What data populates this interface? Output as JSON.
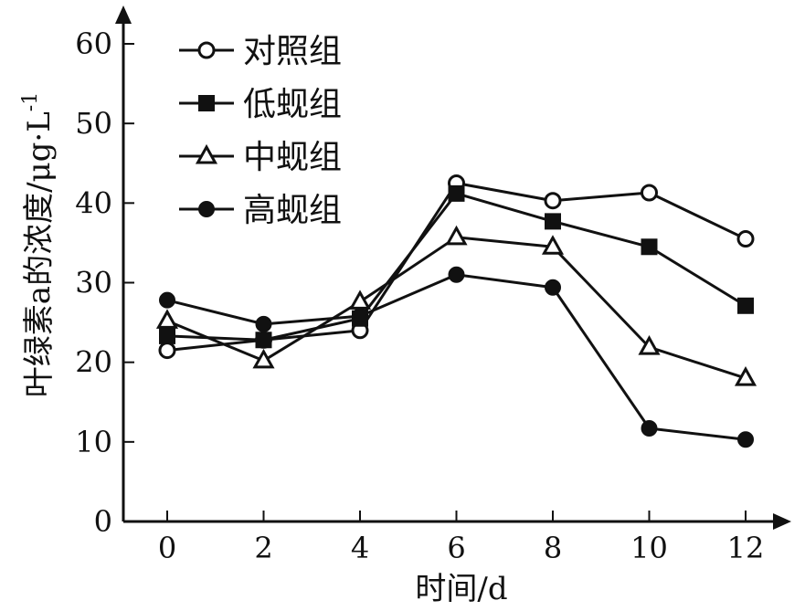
{
  "chart_data": {
    "type": "line",
    "title": "",
    "xlabel": "时间/d",
    "ylabel": "叶绿素a的浓度/μg·L",
    "ylabel_superscript": "-1",
    "x": [
      0,
      2,
      4,
      6,
      8,
      10,
      12
    ],
    "x_ticks": [
      "0",
      "2",
      "4",
      "6",
      "8",
      "10",
      "12"
    ],
    "y_ticks": [
      "0",
      "10",
      "20",
      "30",
      "40",
      "50",
      "60"
    ],
    "xlim": [
      -1,
      13
    ],
    "ylim": [
      0,
      62
    ],
    "grid": false,
    "legend_position": "top-left",
    "series": [
      {
        "name": "对照组",
        "marker": "circle-open",
        "values": [
          21.5,
          22.8,
          24.0,
          42.5,
          40.3,
          41.3,
          35.5
        ]
      },
      {
        "name": "低蚬组",
        "marker": "square-filled",
        "values": [
          23.3,
          22.8,
          25.5,
          41.2,
          37.7,
          34.5,
          27.1
        ]
      },
      {
        "name": "中蚬组",
        "marker": "triangle-open",
        "values": [
          25.2,
          20.2,
          27.6,
          35.7,
          34.5,
          21.9,
          18.0
        ]
      },
      {
        "name": "高蚬组",
        "marker": "circle-filled",
        "values": [
          27.8,
          24.8,
          25.8,
          31.0,
          29.4,
          11.7,
          10.3
        ]
      }
    ],
    "colors": {
      "line": "#111111",
      "background": "#ffffff"
    }
  }
}
